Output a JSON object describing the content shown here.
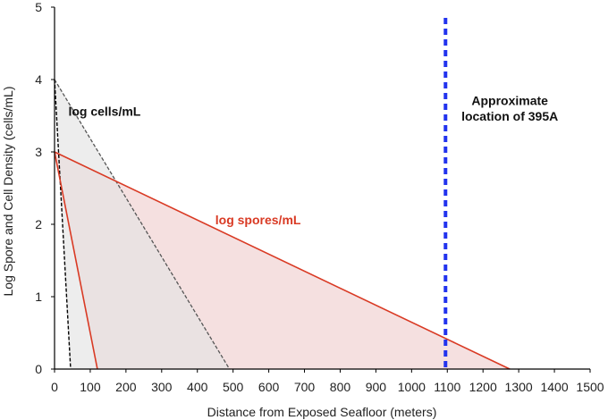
{
  "chart_data": {
    "type": "area",
    "xlabel": "Distance from Exposed Seafloor (meters)",
    "ylabel": "Log Spore and Cell Density (cells/mL)",
    "xlim": [
      0,
      1500
    ],
    "ylim": [
      0,
      5
    ],
    "xticks": [
      0,
      100,
      200,
      300,
      400,
      500,
      600,
      700,
      800,
      900,
      1000,
      1100,
      1200,
      1300,
      1400,
      1500
    ],
    "yticks": [
      0,
      1,
      2,
      3,
      4,
      5
    ],
    "grid": false,
    "series": [
      {
        "name": "log cells/mL",
        "color": "#000000",
        "fill": "#e4e4e4",
        "lines": [
          {
            "style": "dashed",
            "points": [
              [
                0,
                4
              ],
              [
                45,
                0
              ]
            ]
          },
          {
            "style": "dashed",
            "points": [
              [
                0,
                4
              ],
              [
                490,
                0
              ]
            ]
          }
        ]
      },
      {
        "name": "log spores/mL",
        "color": "#d93a24",
        "fill": "#f2d6d6",
        "lines": [
          {
            "style": "solid",
            "points": [
              [
                0,
                3
              ],
              [
                120,
                0
              ]
            ]
          },
          {
            "style": "solid",
            "points": [
              [
                0,
                3
              ],
              [
                1275,
                0
              ]
            ]
          }
        ]
      }
    ],
    "reference_line": {
      "x": 1095,
      "color": "#2233ee",
      "style": "dashed"
    },
    "annotations": [
      {
        "text": "log cells/mL",
        "x": 140,
        "y": 3.5,
        "color": "#111111"
      },
      {
        "text": "log spores/mL",
        "x": 570,
        "y": 2.0,
        "color": "#d93a24"
      },
      {
        "text": "Approximate",
        "x": 1275,
        "y": 3.65,
        "color": "#111111"
      },
      {
        "text": "location of 395A",
        "x": 1275,
        "y": 3.43,
        "color": "#111111"
      }
    ]
  }
}
